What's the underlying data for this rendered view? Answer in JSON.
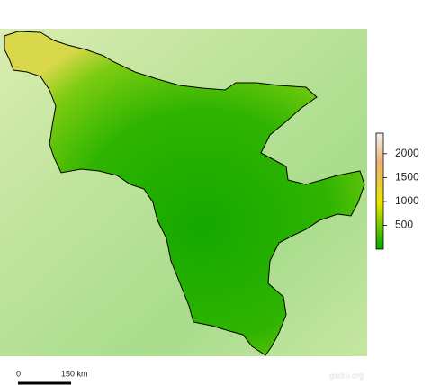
{
  "legend": {
    "lim": [
      0,
      2430
    ],
    "ticks": [
      500,
      1000,
      1500,
      2000
    ]
  },
  "scale_bar": {
    "start_label": "0",
    "end_label": "150 km"
  },
  "credit": "gadm.org"
}
